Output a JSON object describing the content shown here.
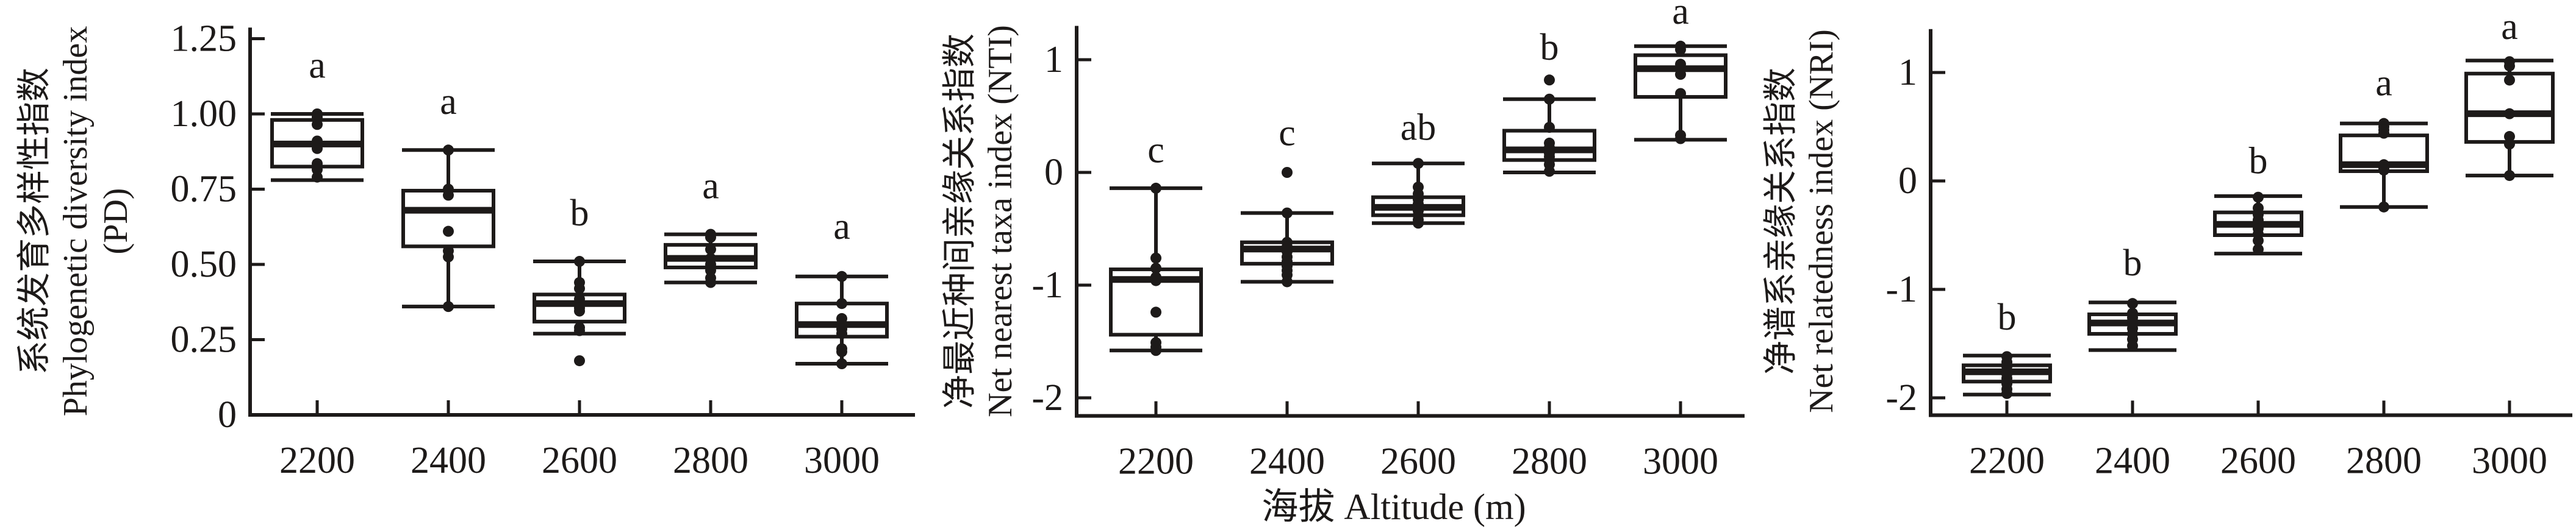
{
  "colors": {
    "ink": "#1d1a19",
    "background": "#ffffff"
  },
  "figure": {
    "xlabel": "海拔 Altitude (m)",
    "x_categories": [
      "2200",
      "2400",
      "2600",
      "2800",
      "3000"
    ]
  },
  "chart_data": [
    {
      "type": "box",
      "panel_id": "PD",
      "ylabel_lines": [
        "系统发育多样性指数",
        "Phylogenetic diversity index",
        "(PD)"
      ],
      "ylim": [
        0,
        1.287
      ],
      "grid": false,
      "yticks": [
        {
          "v": 1.25,
          "label": "1.25"
        },
        {
          "v": 1.0,
          "label": "1.00"
        },
        {
          "v": 0.75,
          "label": "0.75"
        },
        {
          "v": 0.5,
          "label": "0.50"
        },
        {
          "v": 0.25,
          "label": "0.25"
        },
        {
          "v": 0.0,
          "label": "0"
        }
      ],
      "groups": [
        {
          "category": "2200",
          "letter": "a",
          "letter_y": 1.12,
          "whisker_low": 0.78,
          "q1": 0.825,
          "median": 0.9,
          "q3": 0.98,
          "whisker_high": 1.0,
          "points": [
            1.0,
            0.99,
            0.965,
            0.91,
            0.885,
            0.835,
            0.815,
            0.79
          ],
          "outliers": []
        },
        {
          "category": "2400",
          "letter": "a",
          "letter_y": 1.0,
          "whisker_low": 0.36,
          "q1": 0.56,
          "median": 0.68,
          "q3": 0.745,
          "whisker_high": 0.88,
          "points": [
            0.88,
            0.75,
            0.73,
            0.61,
            0.545,
            0.525,
            0.36
          ],
          "outliers": []
        },
        {
          "category": "2600",
          "letter": "b",
          "letter_y": 0.63,
          "whisker_low": 0.27,
          "q1": 0.31,
          "median": 0.37,
          "q3": 0.4,
          "whisker_high": 0.51,
          "points": [
            0.51,
            0.44,
            0.42,
            0.385,
            0.37,
            0.355,
            0.345,
            0.29,
            0.28
          ],
          "outliers": [
            0.18
          ]
        },
        {
          "category": "2800",
          "letter": "a",
          "letter_y": 0.72,
          "whisker_low": 0.44,
          "q1": 0.49,
          "median": 0.52,
          "q3": 0.565,
          "whisker_high": 0.6,
          "points": [
            0.6,
            0.59,
            0.55,
            0.52,
            0.5,
            0.48,
            0.455,
            0.44
          ],
          "outliers": []
        },
        {
          "category": "3000",
          "letter": "a",
          "letter_y": 0.585,
          "whisker_low": 0.17,
          "q1": 0.26,
          "median": 0.3,
          "q3": 0.37,
          "whisker_high": 0.46,
          "points": [
            0.46,
            0.37,
            0.32,
            0.3,
            0.285,
            0.27,
            0.22,
            0.21,
            0.17
          ],
          "outliers": []
        }
      ]
    },
    {
      "type": "box",
      "panel_id": "NTI",
      "ylabel_lines": [
        "净最近种间亲缘关系指数",
        "Net nearest taxa index (NTI)"
      ],
      "ylim": [
        -2.16,
        1.3
      ],
      "grid": false,
      "yticks": [
        {
          "v": 1,
          "label": "1"
        },
        {
          "v": 0,
          "label": "0"
        },
        {
          "v": -1,
          "label": "-1"
        },
        {
          "v": -2,
          "label": "-2"
        }
      ],
      "groups": [
        {
          "category": "2200",
          "letter": "c",
          "letter_y": 0.09,
          "whisker_low": -1.58,
          "q1": -1.44,
          "median": -0.95,
          "q3": -0.86,
          "whisker_high": -0.14,
          "points": [
            -0.14,
            -0.76,
            -0.85,
            -0.93,
            -0.96,
            -1.24,
            -1.51,
            -1.55,
            -1.58
          ],
          "outliers": []
        },
        {
          "category": "2400",
          "letter": "c",
          "letter_y": 0.24,
          "whisker_low": -0.97,
          "q1": -0.81,
          "median": -0.68,
          "q3": -0.62,
          "whisker_high": -0.36,
          "points": [
            -0.36,
            -0.62,
            -0.66,
            -0.7,
            -0.75,
            -0.79,
            -0.83,
            -0.87,
            -0.91,
            -0.97
          ],
          "outliers": [
            0.0
          ]
        },
        {
          "category": "2600",
          "letter": "ab",
          "letter_y": 0.29,
          "whisker_low": -0.45,
          "q1": -0.38,
          "median": -0.31,
          "q3": -0.22,
          "whisker_high": 0.08,
          "points": [
            0.08,
            -0.13,
            -0.19,
            -0.24,
            -0.28,
            -0.31,
            -0.34,
            -0.38,
            -0.42,
            -0.45
          ],
          "outliers": []
        },
        {
          "category": "2800",
          "letter": "b",
          "letter_y": 1.0,
          "whisker_low": 0.0,
          "q1": 0.11,
          "median": 0.2,
          "q3": 0.37,
          "whisker_high": 0.65,
          "points": [
            0.65,
            0.4,
            0.26,
            0.22,
            0.2,
            0.17,
            0.14,
            0.11,
            0.07,
            0.01
          ],
          "outliers": [
            0.82
          ]
        },
        {
          "category": "3000",
          "letter": "a",
          "letter_y": 1.32,
          "whisker_low": 0.29,
          "q1": 0.67,
          "median": 0.92,
          "q3": 1.04,
          "whisker_high": 1.12,
          "points": [
            1.12,
            1.09,
            0.96,
            0.87,
            0.7,
            0.33,
            0.3
          ],
          "outliers": []
        }
      ]
    },
    {
      "type": "box",
      "panel_id": "NRI",
      "ylabel_lines": [
        "净谱系亲缘关系指数",
        "Net relatedness index (NRI)"
      ],
      "ylim": [
        -2.16,
        1.4
      ],
      "grid": false,
      "yticks": [
        {
          "v": 1,
          "label": "1"
        },
        {
          "v": 0,
          "label": "0"
        },
        {
          "v": -1,
          "label": "-1"
        },
        {
          "v": -2,
          "label": "-2"
        }
      ],
      "groups": [
        {
          "category": "2200",
          "letter": "b",
          "letter_y": -1.37,
          "whisker_low": -1.97,
          "q1": -1.85,
          "median": -1.76,
          "q3": -1.7,
          "whisker_high": -1.61,
          "points": [
            -1.62,
            -1.67,
            -1.71,
            -1.75,
            -1.78,
            -1.82,
            -1.87,
            -1.92,
            -1.96
          ],
          "outliers": []
        },
        {
          "category": "2400",
          "letter": "b",
          "letter_y": -0.87,
          "whisker_low": -1.56,
          "q1": -1.41,
          "median": -1.31,
          "q3": -1.23,
          "whisker_high": -1.12,
          "points": [
            -1.13,
            -1.22,
            -1.26,
            -1.29,
            -1.32,
            -1.36,
            -1.41,
            -1.46,
            -1.52
          ],
          "outliers": []
        },
        {
          "category": "2600",
          "letter": "b",
          "letter_y": 0.07,
          "whisker_low": -0.67,
          "q1": -0.5,
          "median": -0.4,
          "q3": -0.29,
          "whisker_high": -0.14,
          "points": [
            -0.15,
            -0.25,
            -0.31,
            -0.36,
            -0.4,
            -0.44,
            -0.49,
            -0.55,
            -0.63
          ],
          "outliers": []
        },
        {
          "category": "2800",
          "letter": "a",
          "letter_y": 0.79,
          "whisker_low": -0.24,
          "q1": 0.09,
          "median": 0.15,
          "q3": 0.42,
          "whisker_high": 0.53,
          "points": [
            0.53,
            0.5,
            0.47,
            0.44,
            0.15,
            0.12,
            0.1,
            -0.24
          ],
          "outliers": []
        },
        {
          "category": "3000",
          "letter": "a",
          "letter_y": 1.31,
          "whisker_low": 0.05,
          "q1": 0.36,
          "median": 0.62,
          "q3": 0.99,
          "whisker_high": 1.11,
          "points": [
            1.1,
            1.06,
            0.93,
            0.62,
            0.41,
            0.34,
            0.05
          ],
          "outliers": []
        }
      ]
    }
  ]
}
